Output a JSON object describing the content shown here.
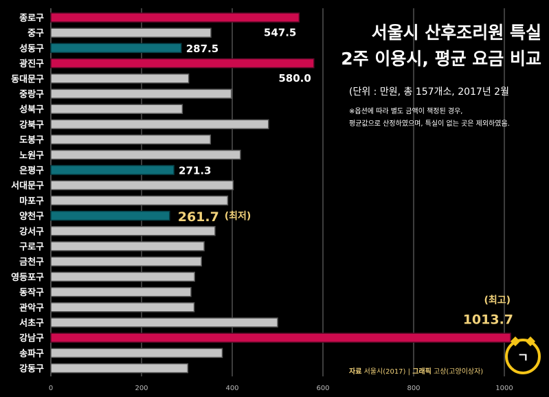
{
  "header": {
    "title_line1": "서울시 산후조리원 특실",
    "title_line2": "2주 이용시, 평균 요금 비교",
    "unit": "(단위 : 만원, 총 157개소, 2017년 2월",
    "note_line1": "※옵션에 따라 별도 금액이 책정된 경우,",
    "note_line2": "평균값으로 산정하였으며, 특실이 없는 곳은 제외하였음."
  },
  "source": {
    "label": "자료",
    "value": "서울시(2017)",
    "graphic_label": "그래픽",
    "graphic_value": "고상(고양이상자)"
  },
  "logo": {
    "glyph": "ㄱ"
  },
  "colors": {
    "high": "#cc0a4d",
    "low": "#0e6f7a",
    "normal": "#c4c4c4",
    "highlight_text": "#f2d27a",
    "grid": "#7a7a7a"
  },
  "chart_data": {
    "type": "bar",
    "orientation": "horizontal",
    "title": "서울시 산후조리원 특실 2주 이용시, 평균 요금 비교",
    "unit": "만원",
    "xlim": [
      0,
      1050
    ],
    "xticks": [
      0,
      200,
      400,
      600,
      800,
      1000
    ],
    "categories": [
      "종로구",
      "중구",
      "성동구",
      "광진구",
      "동대문구",
      "중랑구",
      "성북구",
      "강북구",
      "도봉구",
      "노원구",
      "은평구",
      "서대문구",
      "마포구",
      "양천구",
      "강서구",
      "구로구",
      "금천구",
      "영등포구",
      "동작구",
      "관악구",
      "서초구",
      "강남구",
      "송파구",
      "강동구"
    ],
    "values": [
      547.5,
      353,
      287.5,
      580.0,
      304,
      398,
      290,
      480,
      352,
      418,
      271.3,
      402,
      390,
      261.7,
      362,
      338,
      332,
      317,
      309,
      316,
      500,
      1013.7,
      378,
      302
    ],
    "highlight": [
      "high",
      "normal",
      "low",
      "high",
      "normal",
      "normal",
      "normal",
      "normal",
      "normal",
      "normal",
      "low",
      "normal",
      "normal",
      "low",
      "normal",
      "normal",
      "normal",
      "normal",
      "normal",
      "normal",
      "normal",
      "high",
      "normal",
      "normal"
    ],
    "labels": [
      {
        "index": 0,
        "text": "547.5"
      },
      {
        "index": 2,
        "text": "287.5"
      },
      {
        "index": 3,
        "text": "580.0"
      },
      {
        "index": 10,
        "text": "271.3"
      },
      {
        "index": 13,
        "text": "261.7",
        "suffix": "(최저)"
      },
      {
        "index": 21,
        "text": "1013.7",
        "prefix": "(최고)"
      }
    ]
  }
}
